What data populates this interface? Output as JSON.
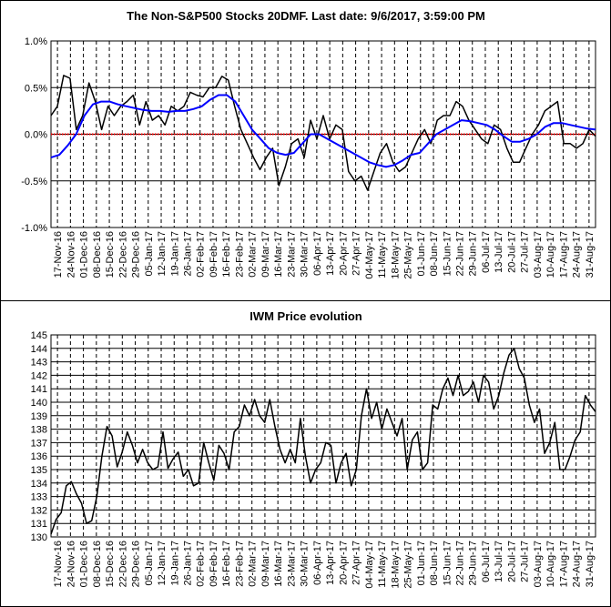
{
  "chart_data": [
    {
      "type": "line",
      "title": "The Non-S&P500 Stocks 20DMF. Last date: 9/6/2017, 3:59:00 PM",
      "ylim": [
        -1.0,
        1.0
      ],
      "y_ticks": [
        "1.0%",
        "0.5%",
        "0.0%",
        "-0.5%",
        "-1.0%"
      ],
      "y_tick_values": [
        1.0,
        0.5,
        0.0,
        -0.5,
        -1.0
      ],
      "x_labels": [
        "17-Nov-16",
        "24-Nov-16",
        "01-Dec-16",
        "08-Dec-16",
        "15-Dec-16",
        "22-Dec-16",
        "29-Dec-16",
        "05-Jan-17",
        "12-Jan-17",
        "19-Jan-17",
        "26-Jan-17",
        "02-Feb-17",
        "09-Feb-17",
        "16-Feb-17",
        "23-Feb-17",
        "02-Mar-17",
        "09-Mar-17",
        "16-Mar-17",
        "23-Mar-17",
        "30-Mar-17",
        "06-Apr-17",
        "13-Apr-17",
        "20-Apr-17",
        "27-Apr-17",
        "04-May-17",
        "11-May-17",
        "18-May-17",
        "25-May-17",
        "01-Jun-17",
        "08-Jun-17",
        "15-Jun-17",
        "22-Jun-17",
        "29-Jun-17",
        "06-Jul-17",
        "13-Jul-17",
        "20-Jul-17",
        "27-Jul-17",
        "03-Aug-17",
        "10-Aug-17",
        "17-Aug-17",
        "24-Aug-17",
        "31-Aug-17"
      ],
      "series": [
        {
          "name": "",
          "color": "#000000",
          "values": [
            0.2,
            0.3,
            0.63,
            0.6,
            0.05,
            0.2,
            0.55,
            0.35,
            0.05,
            0.3,
            0.2,
            0.3,
            0.35,
            0.42,
            0.1,
            0.35,
            0.15,
            0.2,
            0.1,
            0.3,
            0.25,
            0.3,
            0.45,
            0.42,
            0.4,
            0.5,
            0.5,
            0.62,
            0.58,
            0.3,
            0.05,
            -0.1,
            -0.25,
            -0.38,
            -0.25,
            -0.15,
            -0.55,
            -0.35,
            -0.1,
            -0.05,
            -0.25,
            0.15,
            -0.05,
            0.2,
            -0.05,
            0.1,
            0.05,
            -0.4,
            -0.5,
            -0.45,
            -0.6,
            -0.4,
            -0.2,
            -0.1,
            -0.3,
            -0.4,
            -0.35,
            -0.2,
            -0.05,
            0.05,
            -0.1,
            0.15,
            0.2,
            0.2,
            0.35,
            0.3,
            0.15,
            0.05,
            -0.05,
            -0.1,
            0.1,
            0.05,
            -0.15,
            -0.3,
            -0.3,
            -0.15,
            0.0,
            0.1,
            0.25,
            0.3,
            0.35,
            -0.1,
            -0.1,
            -0.15,
            -0.1,
            0.05,
            -0.02
          ]
        },
        {
          "name": "",
          "color": "#0000ff",
          "values": [
            -0.25,
            -0.22,
            -0.12,
            0.0,
            0.2,
            0.32,
            0.35,
            0.35,
            0.32,
            0.3,
            0.28,
            0.26,
            0.25,
            0.25,
            0.24,
            0.25,
            0.25,
            0.27,
            0.3,
            0.37,
            0.42,
            0.42,
            0.35,
            0.2,
            0.05,
            -0.05,
            -0.15,
            -0.2,
            -0.22,
            -0.2,
            -0.1,
            0.0,
            0.0,
            -0.05,
            -0.1,
            -0.15,
            -0.2,
            -0.25,
            -0.3,
            -0.33,
            -0.35,
            -0.33,
            -0.28,
            -0.22,
            -0.2,
            -0.1,
            0.0,
            0.05,
            0.1,
            0.15,
            0.14,
            0.12,
            0.1,
            0.05,
            -0.02,
            -0.08,
            -0.08,
            -0.05,
            0.0,
            0.08,
            0.12,
            0.12,
            0.1,
            0.08,
            0.06,
            0.05
          ]
        }
      ],
      "reference_line": {
        "value": 0.0,
        "color": "#ff0000"
      }
    },
    {
      "type": "line",
      "title": "IWM Price evolution",
      "ylim": [
        130,
        145
      ],
      "y_ticks": [
        "145",
        "144",
        "143",
        "142",
        "141",
        "140",
        "139",
        "138",
        "137",
        "136",
        "135",
        "134",
        "133",
        "132",
        "131",
        "130"
      ],
      "y_tick_values": [
        145,
        144,
        143,
        142,
        141,
        140,
        139,
        138,
        137,
        136,
        135,
        134,
        133,
        132,
        131,
        130
      ],
      "x_labels": [
        "17-Nov-16",
        "24-Nov-16",
        "01-Dec-16",
        "08-Dec-16",
        "15-Dec-16",
        "22-Dec-16",
        "29-Dec-16",
        "05-Jan-17",
        "12-Jan-17",
        "19-Jan-17",
        "26-Jan-17",
        "02-Feb-17",
        "09-Feb-17",
        "16-Feb-17",
        "23-Feb-17",
        "02-Mar-17",
        "09-Mar-17",
        "16-Mar-17",
        "23-Mar-17",
        "30-Mar-17",
        "06-Apr-17",
        "13-Apr-17",
        "20-Apr-17",
        "27-Apr-17",
        "04-May-17",
        "11-May-17",
        "18-May-17",
        "25-May-17",
        "01-Jun-17",
        "08-Jun-17",
        "15-Jun-17",
        "22-Jun-17",
        "29-Jun-17",
        "06-Jul-17",
        "13-Jul-17",
        "20-Jul-17",
        "27-Jul-17",
        "03-Aug-17",
        "10-Aug-17",
        "17-Aug-17",
        "24-Aug-17",
        "31-Aug-17"
      ],
      "series": [
        {
          "name": "",
          "color": "#000000",
          "values": [
            130.2,
            131.3,
            131.8,
            133.8,
            134.1,
            133.2,
            132.5,
            131.0,
            131.2,
            133.0,
            136.0,
            138.2,
            137.5,
            135.2,
            136.3,
            137.8,
            136.8,
            135.5,
            136.5,
            135.5,
            135.0,
            135.2,
            137.8,
            135.1,
            135.8,
            136.3,
            134.5,
            135.0,
            133.8,
            134.0,
            137.0,
            135.5,
            134.2,
            136.8,
            136.2,
            135.0,
            137.8,
            138.2,
            139.8,
            139.0,
            140.2,
            139.0,
            138.5,
            140.2,
            138.2,
            136.5,
            135.5,
            136.5,
            135.5,
            138.8,
            136.0,
            134.0,
            135.0,
            135.5,
            137.0,
            136.8,
            134.0,
            135.5,
            136.2,
            133.8,
            135.0,
            139.0,
            141.0,
            138.8,
            140.0,
            138.0,
            139.5,
            138.5,
            137.5,
            138.8,
            135.0,
            137.2,
            137.8,
            135.0,
            135.5,
            139.8,
            139.5,
            141.0,
            141.8,
            140.5,
            142.0,
            140.5,
            140.8,
            141.5,
            140.0,
            142.0,
            141.5,
            139.5,
            140.5,
            142.2,
            143.5,
            144.0,
            142.5,
            141.8,
            139.8,
            138.5,
            139.5,
            136.2,
            137.0,
            138.5,
            135.0,
            135.0,
            136.0,
            137.2,
            137.8,
            140.5,
            139.8,
            139.3
          ]
        }
      ]
    }
  ]
}
